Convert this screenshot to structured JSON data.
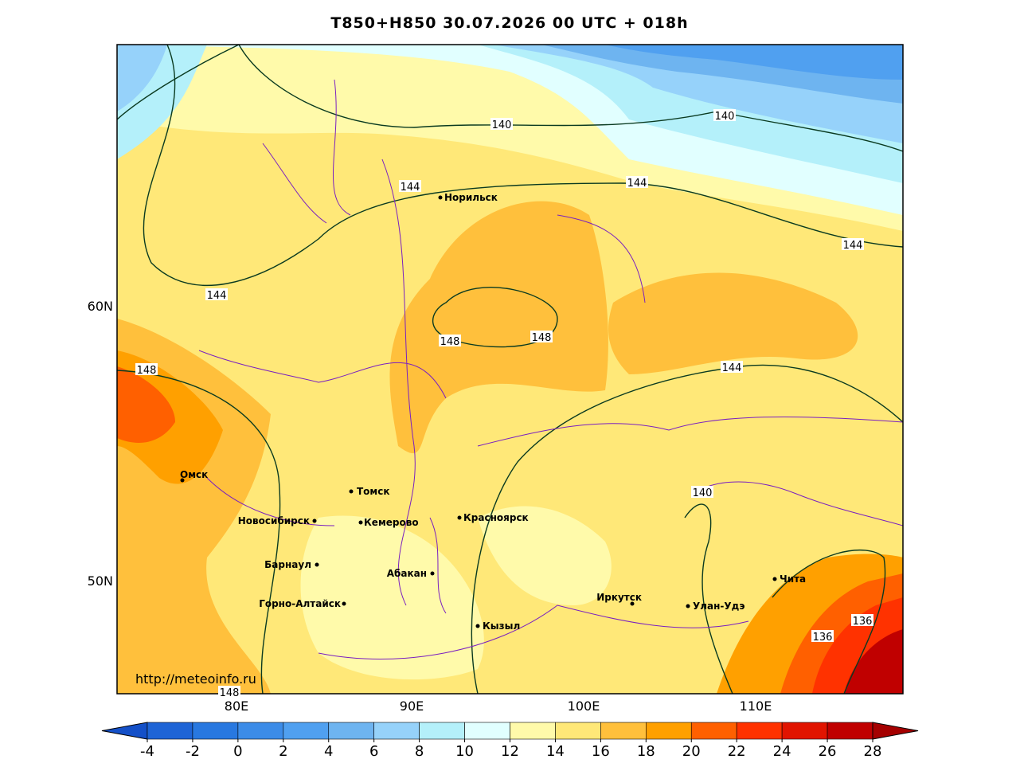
{
  "title": "T850+H850 30.07.2026 00 UTC + 018h",
  "map": {
    "lat_labels": [
      "60N",
      "50N"
    ],
    "lon_labels": [
      "80E",
      "90E",
      "100E",
      "110E"
    ],
    "cities": [
      "Норильск",
      "Омск",
      "Томск",
      "Новосибирск",
      "Кемерово",
      "Красноярск",
      "Барнаул",
      "Абакан",
      "Горно-Алтайск",
      "Кызыл",
      "Иркутск",
      "Улан-Удэ",
      "Чита"
    ],
    "contour_labels": [
      "140",
      "140",
      "144",
      "144",
      "144",
      "144",
      "148",
      "148",
      "148",
      "144",
      "140",
      "136",
      "136",
      "148"
    ],
    "url": "http://meteoinfo.ru"
  },
  "colorbar": {
    "ticks": [
      -4,
      -2,
      0,
      2,
      4,
      6,
      8,
      10,
      12,
      14,
      16,
      18,
      20,
      22,
      24,
      26,
      28
    ],
    "colors": [
      "#1450c8",
      "#1e64d6",
      "#2878e0",
      "#3c8ce8",
      "#50a0f0",
      "#6eb4f0",
      "#96d2fa",
      "#b4f0fa",
      "#e1ffff",
      "#fffaaa",
      "#ffe878",
      "#ffc03c",
      "#ffa000",
      "#ff6000",
      "#ff3200",
      "#e11400",
      "#c00000",
      "#a50000"
    ]
  }
}
